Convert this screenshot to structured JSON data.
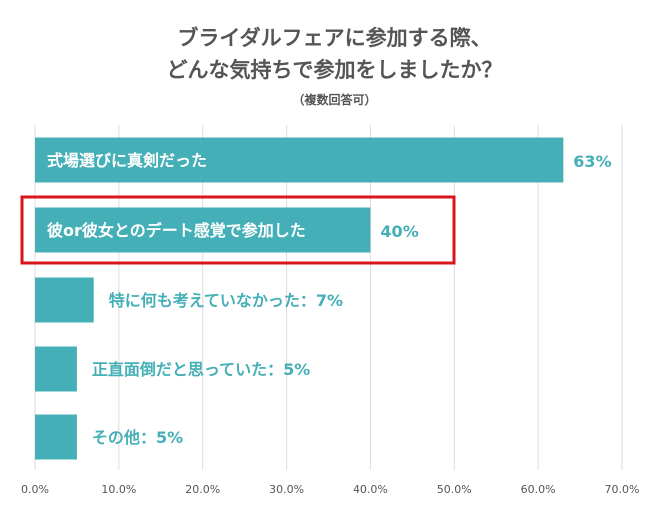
{
  "chart_data": {
    "type": "bar",
    "orientation": "horizontal",
    "title_line1": "ブライダルフェアに参加する際、",
    "title_line2": "どんな気持ちで参加をしましたか？",
    "subtitle": "（複数回答可）",
    "categories": [
      "式場選びに真剣だった",
      "彼or彼女とのデート感覚で参加した",
      "特に何も考えていなかった",
      "正直面倒だと思っていた",
      "その他"
    ],
    "values": [
      63,
      40,
      7,
      5,
      5
    ],
    "value_labels": [
      "63%",
      "40%",
      "7%",
      "5%",
      "5%"
    ],
    "label_separator": "：",
    "xlim": [
      0,
      70
    ],
    "x_ticks": [
      "0.0%",
      "10.0%",
      "20.0%",
      "30.0%",
      "40.0%",
      "50.0%",
      "60.0%",
      "70.0%"
    ],
    "grid": true,
    "highlighted_index": 1,
    "bar_color": "#45AFB7",
    "highlight_color": "#D9141B"
  }
}
